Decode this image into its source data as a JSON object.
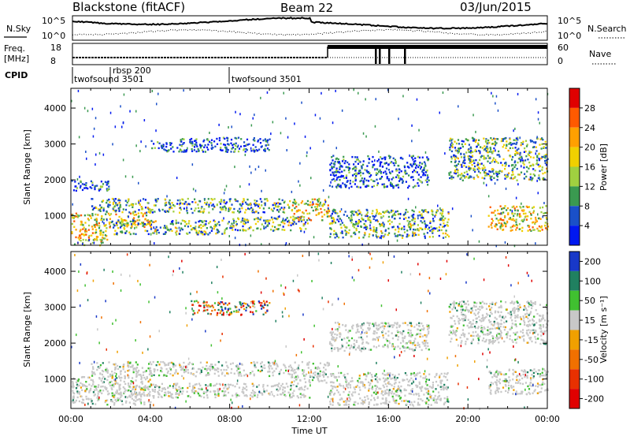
{
  "header": {
    "station": "Blackstone (fitACF)",
    "beam": "Beam 22",
    "date": "03/Jun/2015"
  },
  "params": {
    "nsky_label": "N.Sky",
    "nsearch_label": "N.Search",
    "freq_label_top": "Freq.",
    "freq_label_unit": "[MHz]",
    "nave_label": "Nave",
    "cpid_label": "CPID",
    "left_ticks_top": [
      "10^5",
      "10^0"
    ],
    "right_ticks_top": [
      "10^5",
      "10^0"
    ],
    "freq_ticks": [
      "18",
      "8"
    ],
    "nave_ticks": [
      "60",
      "0"
    ]
  },
  "cpid_segments": [
    {
      "start_h": 0,
      "end_h": 8,
      "label": "twofsound 3501"
    },
    {
      "start_h": 2,
      "end_h": 2.05,
      "label": "rbsp 200"
    },
    {
      "start_h": 8,
      "end_h": 24,
      "label": "twofsound 3501"
    }
  ],
  "chart_data": [
    {
      "type": "heatmap",
      "name": "power",
      "xlabel": "",
      "ylabel": "Slant Range [km]",
      "xlim": [
        0,
        24
      ],
      "ylim": [
        180,
        4550
      ],
      "yticks": [
        1000,
        2000,
        3000,
        4000
      ],
      "colorbar": {
        "label": "Power [dB]",
        "ticks": [
          "28",
          "24",
          "20",
          "16",
          "12",
          "8",
          "4"
        ],
        "colors": [
          "#e00000",
          "#ff5a00",
          "#ffa000",
          "#f0d000",
          "#a0d040",
          "#3a9a50",
          "#1a50c8",
          "#0018f0"
        ]
      },
      "bands": [
        {
          "t0": 0,
          "t1": 1.8,
          "r0": 200,
          "r1": 700,
          "intensity": "high"
        },
        {
          "t0": 0,
          "t1": 4,
          "r0": 700,
          "r1": 1100,
          "intensity": "high"
        },
        {
          "t0": 0,
          "t1": 2,
          "r0": 1700,
          "r1": 2000,
          "intensity": "low"
        },
        {
          "t0": 1,
          "t1": 11,
          "r0": 1100,
          "r1": 1500,
          "intensity": "medium"
        },
        {
          "t0": 2,
          "t1": 8,
          "r0": 500,
          "r1": 900,
          "intensity": "medium"
        },
        {
          "t0": 4,
          "t1": 10,
          "r0": 2800,
          "r1": 3200,
          "intensity": "low"
        },
        {
          "t0": 8,
          "t1": 12,
          "r0": 600,
          "r1": 1000,
          "intensity": "medium"
        },
        {
          "t0": 11,
          "t1": 13,
          "r0": 900,
          "r1": 1500,
          "intensity": "high"
        },
        {
          "t0": 13,
          "t1": 19,
          "r0": 400,
          "r1": 1200,
          "intensity": "medium"
        },
        {
          "t0": 13,
          "t1": 18,
          "r0": 1800,
          "r1": 2700,
          "intensity": "low"
        },
        {
          "t0": 19,
          "t1": 24,
          "r0": 2000,
          "r1": 3200,
          "intensity": "medium"
        },
        {
          "t0": 21,
          "t1": 24,
          "r0": 600,
          "r1": 1300,
          "intensity": "high"
        }
      ]
    },
    {
      "type": "heatmap",
      "name": "velocity",
      "xlabel": "Time UT",
      "ylabel": "Slant Range [km]",
      "xlim": [
        0,
        24
      ],
      "ylim": [
        180,
        4550
      ],
      "xticks": [
        "00:00",
        "04:00",
        "08:00",
        "12:00",
        "16:00",
        "20:00",
        "00:00"
      ],
      "yticks": [
        1000,
        2000,
        3000,
        4000
      ],
      "colorbar": {
        "label": "Velocity [m s⁻¹]",
        "ticks": [
          "200",
          "100",
          "50",
          "15",
          "-15",
          "-50",
          "-100",
          "-200"
        ],
        "colors": [
          "#1838c8",
          "#208060",
          "#40c030",
          "#c8c8c8",
          "#f0a000",
          "#f07000",
          "#e83000",
          "#e00000"
        ]
      },
      "bands": [
        {
          "t0": 0,
          "t1": 4,
          "r0": 300,
          "r1": 1100,
          "intensity": "gray"
        },
        {
          "t0": 1,
          "t1": 11,
          "r0": 1100,
          "r1": 1500,
          "intensity": "gray"
        },
        {
          "t0": 2,
          "t1": 12,
          "r0": 500,
          "r1": 900,
          "intensity": "gray"
        },
        {
          "t0": 11,
          "t1": 13,
          "r0": 900,
          "r1": 1500,
          "intensity": "gray"
        },
        {
          "t0": 13,
          "t1": 19,
          "r0": 300,
          "r1": 1200,
          "intensity": "gray"
        },
        {
          "t0": 13,
          "t1": 18,
          "r0": 1800,
          "r1": 2600,
          "intensity": "gray"
        },
        {
          "t0": 19,
          "t1": 24,
          "r0": 2000,
          "r1": 3200,
          "intensity": "gray"
        },
        {
          "t0": 21,
          "t1": 24,
          "r0": 600,
          "r1": 1300,
          "intensity": "gray"
        },
        {
          "t0": 6,
          "t1": 10,
          "r0": 2800,
          "r1": 3200,
          "intensity": "mixed"
        }
      ]
    }
  ]
}
